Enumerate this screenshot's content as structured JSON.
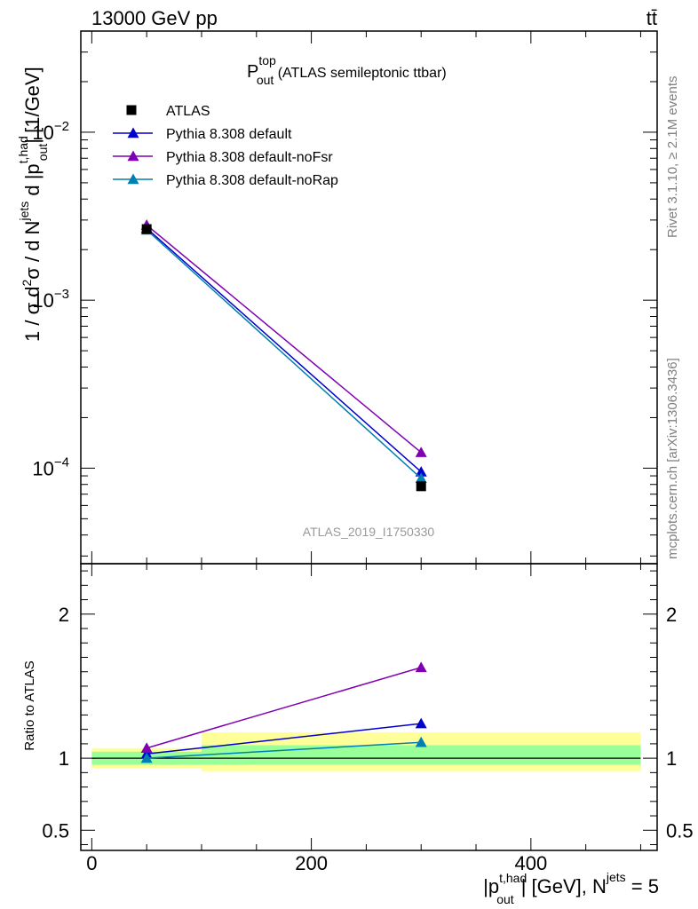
{
  "header": {
    "left": "13000 GeV pp",
    "right": "tt̄"
  },
  "side": {
    "rivet": "Rivet 3.1.10, ≥ 2.1M events",
    "mcplots": "mcplots.cern.ch [arXiv:1306.3436]"
  },
  "watermark": "ATLAS_2019_I1750330",
  "title": {
    "main": "P",
    "sup": "top",
    "sub": "out",
    "rest": " (ATLAS semileptonic ttbar)"
  },
  "ylabel": {
    "main": "1 / σ d",
    "sup2": "2",
    "sigma": "σ / d N",
    "supjets": "jets",
    "mid": " d |p",
    "supthad": "t,had",
    "subout": "out",
    "end": "| [1/GeV]"
  },
  "xlabel": {
    "open": "|p",
    "sup": "t,had",
    "sub": "out",
    "mid": "| [GeV], N",
    "supjets": "jets",
    "end": " = 5"
  },
  "ratio_ylabel": "Ratio to ATLAS",
  "chart_data": {
    "type": "line",
    "x_range": [
      -10,
      515
    ],
    "main": {
      "yscale": "log",
      "ylim": [
        2.7e-05,
        0.04
      ],
      "ticks": [
        {
          "value": 0.0001,
          "base": "10",
          "exp": "−4"
        },
        {
          "value": 0.001,
          "base": "10",
          "exp": "−3"
        },
        {
          "value": 0.01,
          "base": "10",
          "exp": "−2"
        }
      ]
    },
    "ratio": {
      "ylim": [
        0.36,
        2.35
      ],
      "ticks": [
        {
          "value": 0.5,
          "label": "0.5"
        },
        {
          "value": 1,
          "label": "1"
        },
        {
          "value": 2,
          "label": "2"
        }
      ],
      "bands": [
        {
          "xlo": 0,
          "xhi": 100,
          "inner": [
            0.955,
            1.045
          ],
          "outer": [
            0.93,
            1.07
          ]
        },
        {
          "xlo": 100,
          "xhi": 500,
          "inner": [
            0.955,
            1.09
          ],
          "outer": [
            0.91,
            1.18
          ]
        }
      ]
    },
    "x_ticks": [
      {
        "value": 0,
        "label": "0"
      },
      {
        "value": 200,
        "label": "200"
      },
      {
        "value": 400,
        "label": "400"
      }
    ],
    "data": {
      "name": "ATLAS",
      "points": [
        {
          "x": 50,
          "xlo": 0,
          "xhi": 100,
          "y": 0.00265
        },
        {
          "x": 300,
          "xlo": 100,
          "xhi": 500,
          "y": 7.8e-05
        }
      ]
    },
    "series": [
      {
        "name": "Pythia 8.308 default",
        "color": "#0000cc",
        "x": [
          50,
          300
        ],
        "y": [
          0.00268,
          9.5e-05
        ],
        "ratio": [
          1.03,
          1.24
        ]
      },
      {
        "name": "Pythia 8.308 default-noFsr",
        "color": "#7f00b2",
        "x": [
          50,
          300
        ],
        "y": [
          0.0028,
          0.000124
        ],
        "ratio": [
          1.07,
          1.63
        ]
      },
      {
        "name": "Pythia 8.308 default-noRap",
        "color": "#007fb2",
        "x": [
          50,
          300
        ],
        "y": [
          0.00262,
          8.7e-05
        ],
        "ratio": [
          1.0,
          1.11
        ]
      }
    ]
  }
}
